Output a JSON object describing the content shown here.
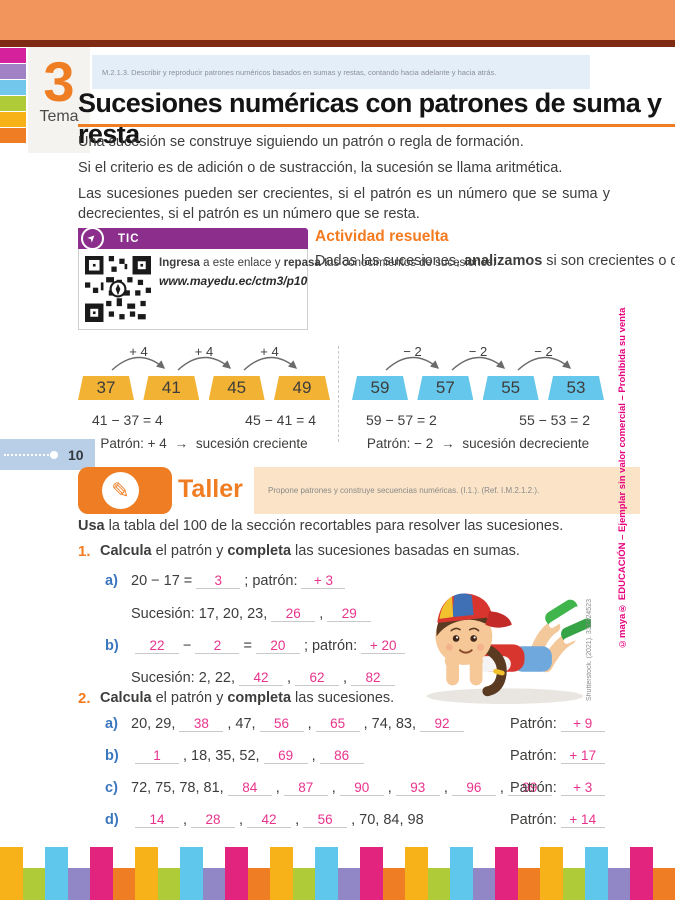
{
  "header": {
    "standard": "M.2.1.3. Describir y reproducir patrones numéricos basados en sumas y restas, contando hacia adelante y hacia atrás.",
    "tema_number": "3",
    "tema_label": "Tema",
    "title": "Sucesiones numéricas con patrones de suma y resta"
  },
  "intro": {
    "p1": "Una sucesión se construye siguiendo un patrón o regla de formación.",
    "p2": "Si el criterio es de adición o de sustracción, la sucesión se llama aritmética.",
    "p3": "Las sucesiones pueden ser crecientes, si el patrón es un número que se suma y decrecientes, si el patrón es un número que se resta."
  },
  "tic": {
    "label": "TIC",
    "line_parts": [
      {
        "b": "Ingresa"
      },
      {
        "t": " a este enlace y "
      },
      {
        "b": "repasa"
      },
      {
        "t": " tus conocimientos de sucesiones:"
      }
    ],
    "url": "www.mayedu.ec/ctm3/p10"
  },
  "actividad": {
    "title": "Actividad resuelta",
    "body_parts": [
      {
        "t": "Dadas las sucesiones, "
      },
      {
        "b": "analizamos"
      },
      {
        "t": " si son crecientes o decrecientes y "
      },
      {
        "b": "calculamos"
      },
      {
        "t": " el patrón."
      }
    ]
  },
  "examples": [
    {
      "step": "+ 4",
      "tiles": [
        "37",
        "41",
        "45",
        "49"
      ],
      "tile_color": "#f2b234",
      "eq1": "41 − 37 = 4",
      "eq2": "45 − 41 = 4",
      "patron_label": "Patrón: + 4",
      "arrow": "→",
      "result": "sucesión creciente"
    },
    {
      "step": "− 2",
      "tiles": [
        "59",
        "57",
        "55",
        "53"
      ],
      "tile_color": "#66c7ec",
      "eq1": "59 − 57 = 2",
      "eq2": "55 − 53 = 2",
      "patron_label": "Patrón: − 2",
      "arrow": "→",
      "result": "sucesión decreciente"
    }
  ],
  "page_number": "10",
  "taller": {
    "label": "Taller",
    "desc": "Propone patrones y construye secuencias numéricas. (I.1.). (Ref. I.M.2.1.2.)."
  },
  "instruction_parts": [
    {
      "b": "Usa"
    },
    {
      "t": " la tabla del 100 de la sección recortables para resolver las sucesiones."
    }
  ],
  "exercise1": {
    "number": "1.",
    "header_parts": [
      {
        "b": "Calcula"
      },
      {
        "t": " el patrón y "
      },
      {
        "b": "completa"
      },
      {
        "t": " las sucesiones basadas en sumas."
      }
    ],
    "items": [
      {
        "label": "a)",
        "line1": [
          {
            "t": "20 − 17 ="
          },
          {
            "blank": "3"
          },
          {
            "t": "; patrón:"
          },
          {
            "blank": "+ 3"
          }
        ],
        "line2": [
          {
            "t": "Sucesión: 17, 20, 23,"
          },
          {
            "blank": "26"
          },
          {
            "t": ","
          },
          {
            "blank": "29"
          }
        ]
      },
      {
        "label": "b)",
        "line1": [
          {
            "blank": "22"
          },
          {
            "t": "−"
          },
          {
            "blank": "2"
          },
          {
            "t": "="
          },
          {
            "blank": "20"
          },
          {
            "t": "; patrón:"
          },
          {
            "blank": "+ 20"
          }
        ],
        "line2": [
          {
            "t": "Sucesión: 2, 22,"
          },
          {
            "blank": "42"
          },
          {
            "t": ","
          },
          {
            "blank": "62"
          },
          {
            "t": ","
          },
          {
            "blank": "82"
          }
        ]
      }
    ]
  },
  "exercise2": {
    "number": "2.",
    "header_parts": [
      {
        "b": "Calcula"
      },
      {
        "t": " el patrón y "
      },
      {
        "b": "completa"
      },
      {
        "t": " las sucesiones."
      }
    ],
    "patron_word": "Patrón:",
    "items": [
      {
        "label": "a)",
        "seq": [
          {
            "t": "20, 29,"
          },
          {
            "blank": "38"
          },
          {
            "t": ", 47,"
          },
          {
            "blank": "56"
          },
          {
            "t": ","
          },
          {
            "blank": "65"
          },
          {
            "t": ", 74, 83,"
          },
          {
            "blank": "92"
          }
        ],
        "patron": "+ 9"
      },
      {
        "label": "b)",
        "seq": [
          {
            "blank": "1"
          },
          {
            "t": ", 18, 35, 52,"
          },
          {
            "blank": "69"
          },
          {
            "t": ","
          },
          {
            "blank": "86"
          }
        ],
        "patron": "+ 17"
      },
      {
        "label": "c)",
        "seq": [
          {
            "t": "72, 75, 78, 81,"
          },
          {
            "blank": "84"
          },
          {
            "t": ","
          },
          {
            "blank": "87"
          },
          {
            "t": ","
          },
          {
            "blank": "90"
          },
          {
            "t": ","
          },
          {
            "blank": "93"
          },
          {
            "t": ","
          },
          {
            "blank": "96"
          },
          {
            "t": ","
          },
          {
            "blank": "99"
          }
        ],
        "patron": "+ 3"
      },
      {
        "label": "d)",
        "seq": [
          {
            "blank": "14"
          },
          {
            "t": ","
          },
          {
            "blank": "28"
          },
          {
            "t": ","
          },
          {
            "blank": "42"
          },
          {
            "t": ","
          },
          {
            "blank": "56"
          },
          {
            "t": ", 70, 84, 98"
          }
        ],
        "patron": "+ 14"
      }
    ]
  },
  "credits": {
    "photo": "Shutterstock. (2021). 331924523",
    "publisher": "©maya® EDUCACIÓN – Ejemplar sin valor comercial – Prohibida su venta"
  },
  "side_tabs": [
    "#d6219c",
    "#a183c5",
    "#72c7ec",
    "#afcb37",
    "#f7b218",
    "#ef7d23"
  ],
  "footer_bars": {
    "pattern": [
      "#f7b219",
      "#afcb37",
      "#5fc6ec",
      "#9287c6",
      "#e2247f",
      "#ef7d23"
    ],
    "repeat": 5
  },
  "brand_colors": {
    "banner_orange": "#f2955c",
    "banner_maroon": "#7f2a12",
    "accent_orange": "#f47b20",
    "tic_purple": "#8b2e8c",
    "answer_pink": "#e8338c",
    "label_blue": "#3a76be",
    "standard_box_blue": "#e4eef8",
    "taller_peach": "#fae3c6"
  }
}
